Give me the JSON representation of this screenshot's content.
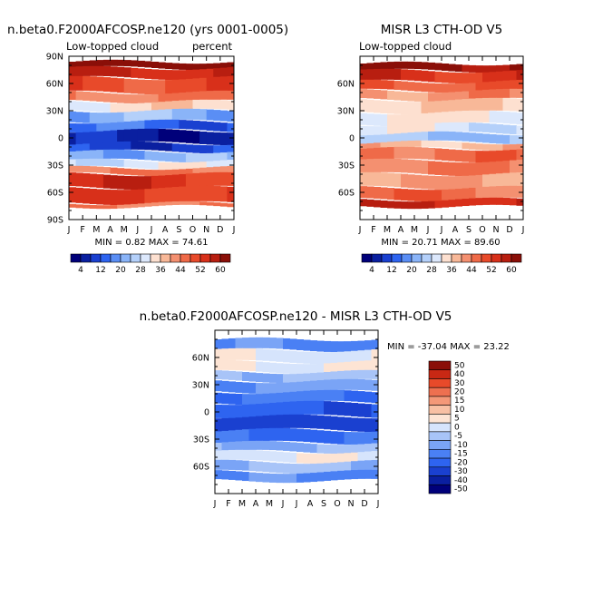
{
  "chart_data": [
    {
      "type": "heatmap",
      "id": "model",
      "title": "n.beta0.F2000AFCOSP.ne120 (yrs 0001-0005)",
      "subtitle_left": "Low-topped cloud",
      "subtitle_right": "percent",
      "x_ticks": [
        "J",
        "F",
        "M",
        "A",
        "M",
        "J",
        "J",
        "A",
        "S",
        "O",
        "N",
        "D",
        "J"
      ],
      "y_ticks": [
        "90N",
        "60N",
        "30N",
        "0",
        "30S",
        "60S",
        "90S"
      ],
      "ylim": [
        -90,
        90
      ],
      "stats_text": "MIN =   0.82  MAX =  74.61",
      "min": 0.82,
      "max": 74.61,
      "colorbar_labels": [
        "4",
        "12",
        "20",
        "28",
        "36",
        "44",
        "52",
        "60"
      ],
      "bands_lat": [
        {
          "lat": [
            77,
            84
          ],
          "value": 64
        },
        {
          "lat": [
            66,
            77
          ],
          "value": 56
        },
        {
          "lat": [
            50,
            66
          ],
          "value": 50
        },
        {
          "lat": [
            40,
            50
          ],
          "value": 44
        },
        {
          "lat": [
            30,
            40
          ],
          "value": 34
        },
        {
          "lat": [
            18,
            30
          ],
          "value": 22
        },
        {
          "lat": [
            8,
            18
          ],
          "value": 14
        },
        {
          "lat": [
            -6,
            8
          ],
          "value": 6
        },
        {
          "lat": [
            -15,
            -6
          ],
          "value": 10
        },
        {
          "lat": [
            -25,
            -15
          ],
          "value": 22
        },
        {
          "lat": [
            -33,
            -25
          ],
          "value": 30
        },
        {
          "lat": [
            -40,
            -33
          ],
          "value": 44
        },
        {
          "lat": [
            -55,
            -40
          ],
          "value": 54
        },
        {
          "lat": [
            -72,
            -55
          ],
          "value": 52
        },
        {
          "lat": [
            -76,
            -72
          ],
          "value": 44
        }
      ]
    },
    {
      "type": "heatmap",
      "id": "misr",
      "title": "MISR L3 CTH-OD V5",
      "subtitle_left": "Low-topped cloud",
      "x_ticks": [
        "J",
        "F",
        "M",
        "A",
        "M",
        "J",
        "J",
        "A",
        "S",
        "O",
        "N",
        "D",
        "J"
      ],
      "y_ticks": [
        "60N",
        "30N",
        "0",
        "30S",
        "60S"
      ],
      "ylim": [
        -90,
        90
      ],
      "stats_text": "MIN =  20.71  MAX =  89.60",
      "min": 20.71,
      "max": 89.6,
      "colorbar_labels": [
        "4",
        "12",
        "20",
        "28",
        "36",
        "44",
        "52",
        "60"
      ],
      "bands_lat": [
        {
          "lat": [
            74,
            82
          ],
          "value": 62
        },
        {
          "lat": [
            62,
            74
          ],
          "value": 54
        },
        {
          "lat": [
            52,
            62
          ],
          "value": 48
        },
        {
          "lat": [
            42,
            52
          ],
          "value": 42
        },
        {
          "lat": [
            28,
            42
          ],
          "value": 36
        },
        {
          "lat": [
            15,
            28
          ],
          "value": 33
        },
        {
          "lat": [
            5,
            15
          ],
          "value": 30
        },
        {
          "lat": [
            -5,
            5
          ],
          "value": 24
        },
        {
          "lat": [
            -12,
            -5
          ],
          "value": 38
        },
        {
          "lat": [
            -25,
            -12
          ],
          "value": 46
        },
        {
          "lat": [
            -40,
            -25
          ],
          "value": 44
        },
        {
          "lat": [
            -55,
            -40
          ],
          "value": 40
        },
        {
          "lat": [
            -68,
            -55
          ],
          "value": 46
        },
        {
          "lat": [
            -76,
            -68
          ],
          "value": 56
        }
      ]
    },
    {
      "type": "heatmap",
      "id": "diff",
      "title": "n.beta0.F2000AFCOSP.ne120 - MISR L3 CTH-OD V5",
      "x_ticks": [
        "J",
        "F",
        "M",
        "A",
        "M",
        "J",
        "J",
        "A",
        "S",
        "O",
        "N",
        "D",
        "J"
      ],
      "y_ticks": [
        "60N",
        "30N",
        "0",
        "30S",
        "60S"
      ],
      "ylim": [
        -90,
        90
      ],
      "stats_text": "MIN = -37.04  MAX =  23.22",
      "min": -37.04,
      "max": 23.22,
      "colorbar_labels": [
        "50",
        "40",
        "30",
        "20",
        "15",
        "10",
        "5",
        "0",
        "-5",
        "-10",
        "-15",
        "-20",
        "-30",
        "-40",
        "-50"
      ],
      "bands_lat": [
        {
          "lat": [
            68,
            80
          ],
          "value": -12
        },
        {
          "lat": [
            55,
            68
          ],
          "value": 3
        },
        {
          "lat": [
            44,
            55
          ],
          "value": 6
        },
        {
          "lat": [
            34,
            44
          ],
          "value": -3
        },
        {
          "lat": [
            22,
            34
          ],
          "value": -8
        },
        {
          "lat": [
            10,
            22
          ],
          "value": -14
        },
        {
          "lat": [
            -5,
            10
          ],
          "value": -18
        },
        {
          "lat": [
            -20,
            -5
          ],
          "value": -24
        },
        {
          "lat": [
            -34,
            -20
          ],
          "value": -16
        },
        {
          "lat": [
            -44,
            -34
          ],
          "value": -6
        },
        {
          "lat": [
            -55,
            -44
          ],
          "value": 4
        },
        {
          "lat": [
            -66,
            -55
          ],
          "value": -4
        },
        {
          "lat": [
            -76,
            -66
          ],
          "value": -12
        }
      ]
    }
  ],
  "palette": {
    "model_misr": [
      "#00007a",
      "#0a1fa0",
      "#1a40d0",
      "#2e64f0",
      "#5a8ef5",
      "#8ab4f8",
      "#b4d0fa",
      "#dce8fc",
      "#fde0d0",
      "#f8b898",
      "#f49070",
      "#ef6a48",
      "#e84a2a",
      "#d8301a",
      "#b81e10",
      "#8a0f08"
    ],
    "diff": [
      "#00007a",
      "#0a1fa0",
      "#1a40d0",
      "#2e64f0",
      "#4a80f4",
      "#7aa4f6",
      "#a8c4f8",
      "#d6e4fc",
      "#fde4d4",
      "#f8c0a4",
      "#f49878",
      "#ee7050",
      "#e84a2a",
      "#c82814",
      "#8a0f08"
    ],
    "missing": "#ffffff"
  }
}
